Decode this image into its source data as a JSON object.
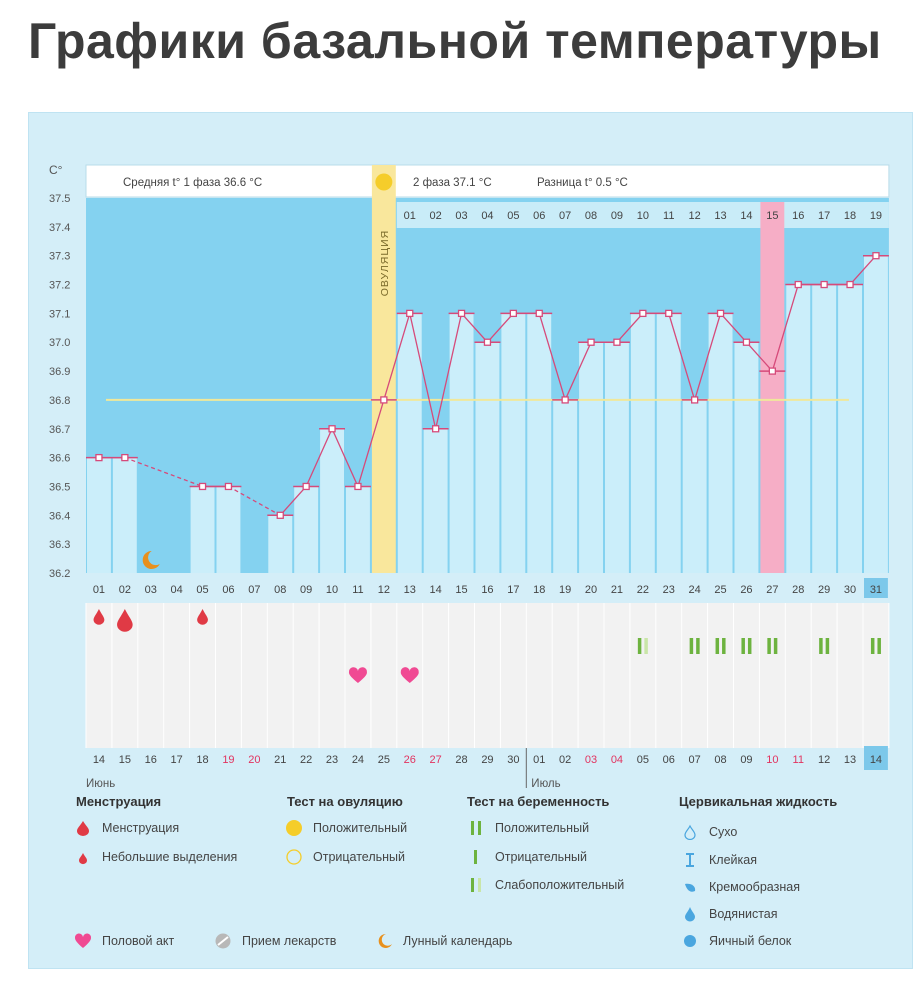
{
  "title": "Графики базальной температуры",
  "header": {
    "unit": "C°",
    "phase1": "Средняя t° 1 фаза 36.6 °C",
    "phase2": "2 фаза 37.1 °C",
    "diff": "Разница t° 0.5 °C",
    "ovulation_label": "ОВУЛЯЦИЯ"
  },
  "chart_data": {
    "type": "line",
    "title": "",
    "ylabel": "C°",
    "ylim": [
      36.2,
      37.5
    ],
    "y_ticks": [
      "37.5",
      "37.4",
      "37.3",
      "37.2",
      "37.1",
      "37.0",
      "36.9",
      "36.8",
      "36.7",
      "36.6",
      "36.5",
      "36.4",
      "36.3",
      "36.2"
    ],
    "days": [
      "01",
      "02",
      "03",
      "04",
      "05",
      "06",
      "07",
      "08",
      "09",
      "10",
      "11",
      "12",
      "13",
      "14",
      "15",
      "16",
      "17",
      "18",
      "19",
      "20",
      "21",
      "22",
      "23",
      "24",
      "25",
      "26",
      "27",
      "28",
      "29",
      "30",
      "31"
    ],
    "series": [
      {
        "values": [
          36.6,
          36.6,
          null,
          null,
          36.5,
          36.5,
          null,
          36.4,
          36.5,
          36.7,
          36.5,
          36.8,
          37.1,
          36.7,
          37.1,
          37.0,
          37.1,
          37.1,
          36.8,
          37.0,
          37.0,
          37.1,
          37.1,
          36.8,
          37.1,
          37.0,
          36.9,
          37.2,
          37.2,
          37.2,
          37.3
        ]
      }
    ],
    "cover_line": 36.8,
    "ovulation_day": "12",
    "post_ovulation_days": [
      "01",
      "02",
      "03",
      "04",
      "05",
      "06",
      "07",
      "08",
      "09",
      "10",
      "11",
      "12",
      "13",
      "14",
      "15",
      "16",
      "17",
      "18",
      "19"
    ],
    "highlight_day": "15",
    "dates_row": [
      "14",
      "15",
      "16",
      "17",
      "18",
      "19",
      "20",
      "21",
      "22",
      "23",
      "24",
      "25",
      "26",
      "27",
      "28",
      "29",
      "30",
      "01",
      "02",
      "03",
      "04",
      "05",
      "06",
      "07",
      "08",
      "09",
      "10",
      "11",
      "12",
      "13",
      "14"
    ],
    "red_dates": [
      "19",
      "20",
      "26",
      "27",
      "03",
      "04",
      "10",
      "11"
    ],
    "month_1": "Июнь",
    "month_2": "Июль",
    "menstruation_marks": [
      {
        "day": "01",
        "kind": "small"
      },
      {
        "day": "02",
        "kind": "menstruation"
      },
      {
        "day": "05",
        "kind": "small"
      }
    ],
    "sex_days": [
      "11",
      "13"
    ],
    "moon_day": "03",
    "pregnancy_tests": [
      {
        "day": "22",
        "kind": "weak_positive"
      },
      {
        "day": "24",
        "kind": "positive"
      },
      {
        "day": "25",
        "kind": "positive"
      },
      {
        "day": "26",
        "kind": "positive"
      },
      {
        "day": "27",
        "kind": "positive"
      },
      {
        "day": "29",
        "kind": "positive"
      },
      {
        "day": "31",
        "kind": "positive"
      }
    ],
    "colors": {
      "line": "#d64a7a",
      "bar": "#cbeefa",
      "fill": "#84d2f0",
      "ovulation": "#f9e79c",
      "highlight": "#f6aec6",
      "cover": "#f0e89a",
      "red": "#e2335f"
    }
  },
  "legend": {
    "menstruation": {
      "title": "Менструация",
      "items": [
        "Менструация",
        "Небольшие выделения"
      ]
    },
    "ovulation_test": {
      "title": "Тест на овуляцию",
      "items": [
        "Положительный",
        "Отрицательный"
      ]
    },
    "pregnancy_test": {
      "title": "Тест на беременность",
      "items": [
        "Положительный",
        "Отрицательный",
        "Слабоположительный"
      ]
    },
    "cervical": {
      "title": "Цервикальная жидкость",
      "items": [
        "Сухо",
        "Клейкая",
        "Кремообразная",
        "Водянистая",
        "Яичный белок"
      ]
    },
    "bottom": [
      "Половой акт",
      "Прием лекарств",
      "Лунный календарь"
    ],
    "colors": {
      "red": "#e03a45",
      "yellow": "#f5cd2a",
      "green": "#6db33f",
      "pink": "#f04a93",
      "grey": "#b8b8b8",
      "orange": "#e8901c",
      "blue": "#4aa6df"
    }
  }
}
